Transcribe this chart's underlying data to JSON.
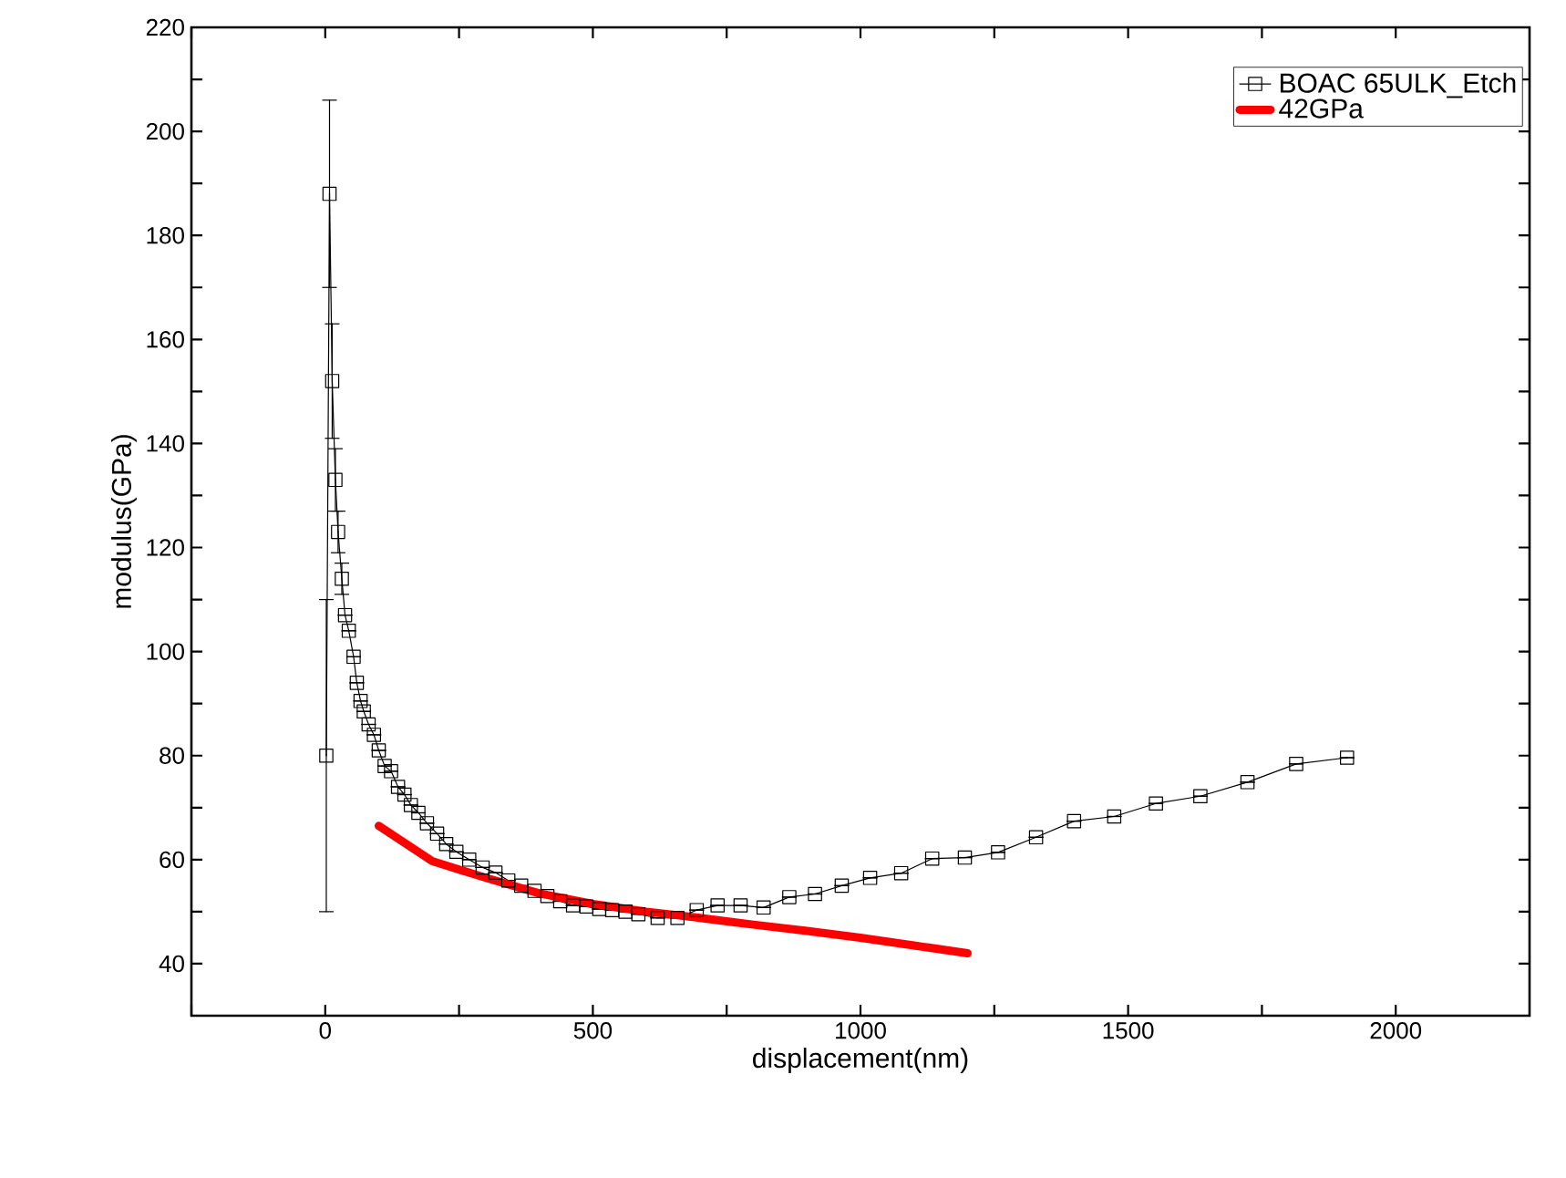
{
  "chart_data": {
    "type": "line",
    "xlabel": "displacement(nm)",
    "ylabel": "modulus(GPa)",
    "xlim": [
      -250,
      2250
    ],
    "ylim": [
      30,
      220
    ],
    "xticks": [
      0,
      500,
      1000,
      1500,
      2000,
      {
        "value": 250,
        "label": null
      },
      {
        "value": 750,
        "label": null
      },
      {
        "value": 1250,
        "label": null
      },
      {
        "value": 1750,
        "label": null
      },
      {
        "value": -250,
        "label": null
      }
    ],
    "yticks": [
      40,
      60,
      80,
      100,
      120,
      140,
      160,
      180,
      200,
      220,
      {
        "value": 50,
        "label": null
      },
      {
        "value": 70,
        "label": null
      },
      {
        "value": 90,
        "label": null
      },
      {
        "value": 110,
        "label": null
      },
      {
        "value": 130,
        "label": null
      },
      {
        "value": 150,
        "label": null
      },
      {
        "value": 170,
        "label": null
      },
      {
        "value": 190,
        "label": null
      },
      {
        "value": 210,
        "label": null
      }
    ],
    "legend": "top right",
    "grid": false,
    "series": [
      {
        "name": "BOAC 65ULK_Etch",
        "color": "#000000",
        "marker": "square",
        "line_style": "solid",
        "x": [
          2,
          8,
          13,
          19,
          24,
          31,
          37,
          44,
          53,
          59,
          66,
          72,
          81,
          91,
          100,
          111,
          123,
          136,
          148,
          160,
          174,
          190,
          209,
          226,
          245,
          269,
          294,
          318,
          342,
          366,
          391,
          415,
          439,
          463,
          488,
          512,
          536,
          561,
          585,
          621,
          658,
          694,
          733,
          776,
          819,
          867,
          915,
          965,
          1018,
          1076,
          1134,
          1195,
          1257,
          1328,
          1399,
          1474,
          1552,
          1635,
          1723,
          1814,
          1909
        ],
        "values": [
          80,
          188,
          152,
          133,
          123,
          114,
          107,
          104,
          99,
          94,
          90.5,
          88.5,
          86,
          84,
          81,
          78,
          77,
          74,
          72.5,
          70.5,
          69,
          67,
          65,
          63,
          61.5,
          60,
          58.5,
          57.5,
          56,
          55,
          54,
          53,
          52,
          51.2,
          51,
          50.5,
          50.3,
          50,
          49.5,
          48.8,
          48.8,
          50.3,
          51.2,
          51.2,
          50.8,
          52.8,
          53.4,
          55,
          56.5,
          57.4,
          60.2,
          60.4,
          61.4,
          64.3,
          67.4,
          68.3,
          70.8,
          72.2,
          74.9,
          78.4,
          79.6
        ],
        "errors": [
          30,
          18,
          11,
          6,
          4,
          3,
          null,
          null,
          null,
          null,
          null,
          null,
          null,
          null,
          null,
          null,
          null,
          null,
          null,
          null,
          null,
          null,
          null,
          null,
          null,
          null,
          null,
          null,
          null,
          null,
          null,
          null,
          null,
          null,
          null,
          null,
          null,
          null,
          null,
          null,
          null,
          null,
          null,
          null,
          null,
          null,
          null,
          null,
          null,
          null,
          null,
          null,
          null,
          null,
          null,
          null,
          null,
          null,
          null,
          null,
          null
        ]
      },
      {
        "name": "42GPa",
        "color": "#ff0000",
        "marker": "none",
        "line_style": "solid",
        "x": [
          100,
          200,
          300,
          400,
          500,
          600,
          700,
          800,
          900,
          1000,
          1100,
          1200
        ],
        "values": [
          66.5,
          59.7,
          56.5,
          53.5,
          51.5,
          50,
          48.8,
          47.5,
          46.3,
          45,
          43.5,
          42
        ]
      }
    ]
  }
}
